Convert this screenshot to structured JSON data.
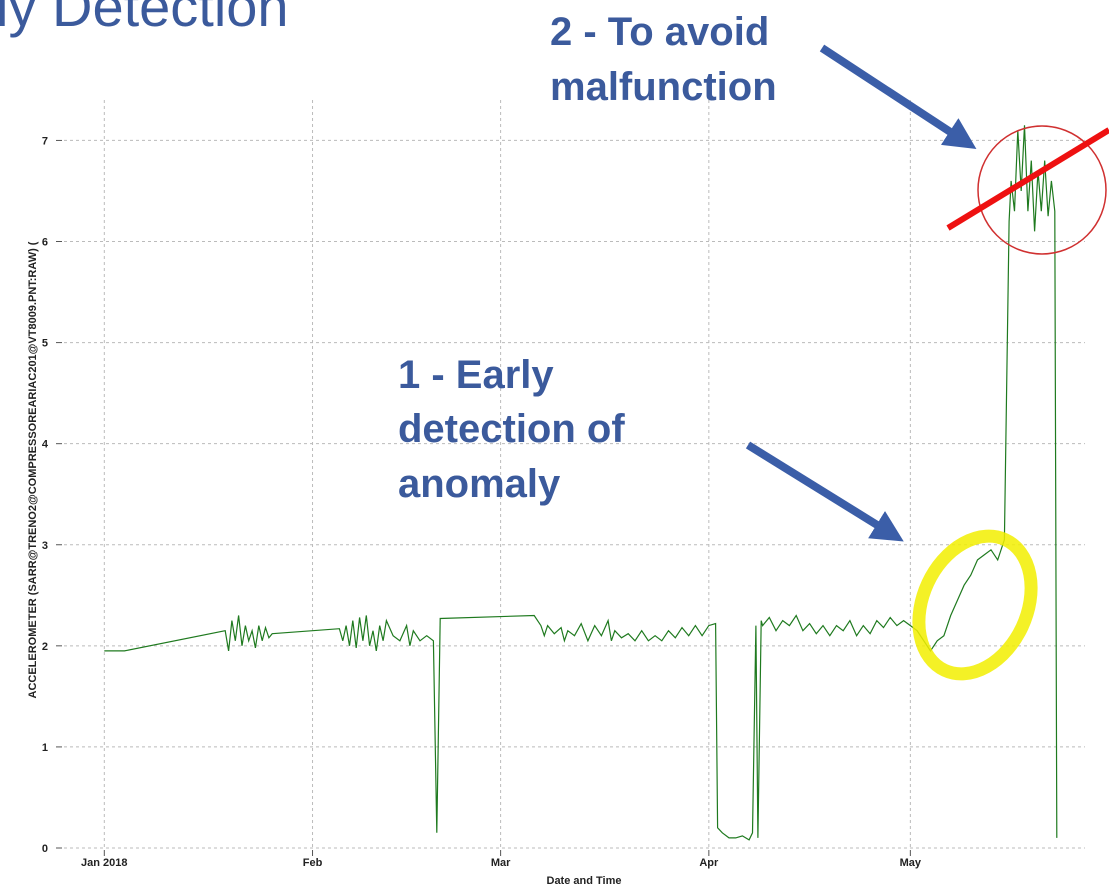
{
  "chart_data": {
    "type": "line",
    "title": "ly Detection",
    "x_label": "Date and Time",
    "y_label": "ACCELEROMETER (SARR@TRENO2@COMPRESSOREARIAC201@VT8009.PNT:RAW) (",
    "xlim": [
      -6,
      146
    ],
    "xticks": [
      {
        "value": 0,
        "label": "Jan 2018"
      },
      {
        "value": 31,
        "label": "Feb"
      },
      {
        "value": 59,
        "label": "Mar"
      },
      {
        "value": 90,
        "label": "Apr"
      },
      {
        "value": 120,
        "label": "May"
      }
    ],
    "ylim": [
      0,
      7.4
    ],
    "yticks": [
      0,
      1,
      2,
      3,
      4,
      5,
      6,
      7
    ],
    "grid": true,
    "series": [
      {
        "color": "#1f7a1f",
        "x": [
          0,
          3,
          18,
          18.5,
          19,
          19.5,
          20,
          20.5,
          21,
          21.5,
          22,
          22.5,
          23,
          23.5,
          24,
          24.5,
          25,
          35,
          35.5,
          36,
          36.5,
          37,
          37.5,
          38,
          38.5,
          39,
          39.5,
          40,
          40.5,
          41,
          41.5,
          42,
          43,
          44,
          45,
          45.5,
          46,
          47,
          48,
          49,
          49.5,
          50,
          64,
          65,
          65.5,
          66,
          67,
          68,
          68.5,
          69,
          70,
          71,
          72,
          73,
          74,
          75,
          75.5,
          76,
          77,
          78,
          79,
          80,
          81,
          82,
          83,
          84,
          85,
          86,
          87,
          88,
          89,
          90,
          91,
          91.3,
          92,
          93,
          94,
          95,
          96,
          96.5,
          97,
          97.3,
          97.8,
          98,
          99,
          100,
          101,
          102,
          103,
          104,
          105,
          106,
          107,
          108,
          109,
          110,
          111,
          112,
          113,
          114,
          115,
          116,
          117,
          118,
          119,
          120,
          121,
          122,
          123,
          124,
          125,
          126,
          127,
          128,
          129,
          130,
          131,
          132,
          133,
          134,
          134.7,
          135,
          135.5,
          136,
          136.5,
          137,
          137.5,
          138,
          138.5,
          139,
          139.5,
          140,
          140.5,
          141,
          141.5,
          141.8
        ],
        "values": [
          1.95,
          1.95,
          2.15,
          1.95,
          2.25,
          2.05,
          2.3,
          2.0,
          2.2,
          2.05,
          2.15,
          1.98,
          2.2,
          2.05,
          2.18,
          2.08,
          2.12,
          2.17,
          2.05,
          2.2,
          2.0,
          2.25,
          1.98,
          2.28,
          2.05,
          2.3,
          2.0,
          2.15,
          1.95,
          2.2,
          2.05,
          2.25,
          2.1,
          2.05,
          2.2,
          2.0,
          2.15,
          2.05,
          2.1,
          2.05,
          0.15,
          2.27,
          2.3,
          2.2,
          2.1,
          2.2,
          2.12,
          2.18,
          2.05,
          2.15,
          2.1,
          2.22,
          2.05,
          2.2,
          2.1,
          2.25,
          2.05,
          2.15,
          2.08,
          2.12,
          2.05,
          2.15,
          2.05,
          2.1,
          2.05,
          2.15,
          2.08,
          2.18,
          2.1,
          2.2,
          2.1,
          2.2,
          2.22,
          0.2,
          0.15,
          0.1,
          0.1,
          0.12,
          0.08,
          0.15,
          2.2,
          0.1,
          2.25,
          2.2,
          2.28,
          2.15,
          2.25,
          2.2,
          2.3,
          2.15,
          2.22,
          2.12,
          2.2,
          2.1,
          2.2,
          2.15,
          2.25,
          2.1,
          2.2,
          2.12,
          2.25,
          2.18,
          2.28,
          2.2,
          2.25,
          2.2,
          2.15,
          2.05,
          1.95,
          2.05,
          2.1,
          2.3,
          2.45,
          2.6,
          2.7,
          2.85,
          2.9,
          2.95,
          2.85,
          3.05,
          6.2,
          6.6,
          6.3,
          7.1,
          6.5,
          7.15,
          6.3,
          6.8,
          6.1,
          6.7,
          6.3,
          6.8,
          6.25,
          6.6,
          6.3,
          0.1
        ]
      }
    ]
  },
  "annotations": [
    {
      "lines": [
        "2 - To avoid",
        "malfunction"
      ]
    },
    {
      "lines": [
        "1 - Early",
        "detection of",
        "anomaly"
      ]
    }
  ]
}
